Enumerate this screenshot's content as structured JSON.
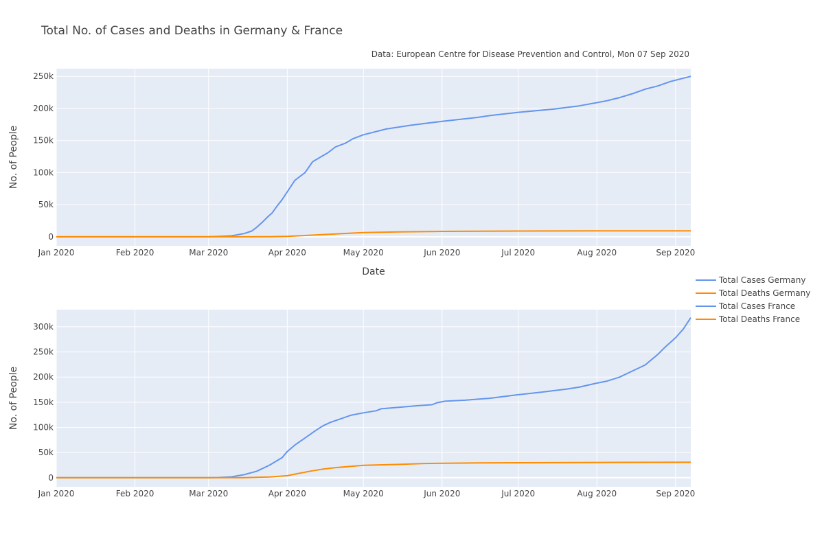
{
  "title": "Total No. of Cases and Deaths in Germany & France",
  "source_note": "Data: European Centre for Disease Prevention and Control, Mon 07 Sep 2020",
  "colors": {
    "cases": "#6495ED",
    "deaths": "#FF8C00",
    "plot_bg": "#E5ECF6",
    "grid": "#ffffff"
  },
  "legend": {
    "placement": "right",
    "items": [
      {
        "label": "Total Cases Germany",
        "color": "#6495ED"
      },
      {
        "label": "Total Deaths Germany",
        "color": "#FF8C00"
      },
      {
        "label": "Total Cases France",
        "color": "#6495ED"
      },
      {
        "label": "Total Deaths France",
        "color": "#FF8C00"
      }
    ]
  },
  "chart_data": [
    {
      "type": "line",
      "xlabel": "Date",
      "ylabel": "No. of People",
      "xlim": [
        "2020-01-01",
        "2020-09-07"
      ],
      "ylim": [
        -14000,
        262000
      ],
      "x_ticks": [
        {
          "date": "2020-01-01",
          "label": "Jan 2020"
        },
        {
          "date": "2020-02-01",
          "label": "Feb 2020"
        },
        {
          "date": "2020-03-01",
          "label": "Mar 2020"
        },
        {
          "date": "2020-04-01",
          "label": "Apr 2020"
        },
        {
          "date": "2020-05-01",
          "label": "May 2020"
        },
        {
          "date": "2020-06-01",
          "label": "Jun 2020"
        },
        {
          "date": "2020-07-01",
          "label": "Jul 2020"
        },
        {
          "date": "2020-08-01",
          "label": "Aug 2020"
        },
        {
          "date": "2020-09-01",
          "label": "Sep 2020"
        }
      ],
      "y_ticks": [
        {
          "value": 0,
          "label": "0"
        },
        {
          "value": 50000,
          "label": "50k"
        },
        {
          "value": 100000,
          "label": "100k"
        },
        {
          "value": 150000,
          "label": "150k"
        },
        {
          "value": 200000,
          "label": "200k"
        },
        {
          "value": 250000,
          "label": "250k"
        }
      ],
      "series": [
        {
          "name": "Total Cases Germany",
          "color": "#6495ED",
          "points": [
            [
              "2020-01-01",
              0
            ],
            [
              "2020-02-01",
              10
            ],
            [
              "2020-03-01",
              130
            ],
            [
              "2020-03-05",
              500
            ],
            [
              "2020-03-10",
              1500
            ],
            [
              "2020-03-15",
              5000
            ],
            [
              "2020-03-18",
              9000
            ],
            [
              "2020-03-19",
              12000
            ],
            [
              "2020-03-20",
              15000
            ],
            [
              "2020-03-22",
              22000
            ],
            [
              "2020-03-24",
              30000
            ],
            [
              "2020-03-26",
              37000
            ],
            [
              "2020-03-28",
              48000
            ],
            [
              "2020-03-30",
              58000
            ],
            [
              "2020-04-01",
              70000
            ],
            [
              "2020-04-04",
              88000
            ],
            [
              "2020-04-08",
              100000
            ],
            [
              "2020-04-11",
              117000
            ],
            [
              "2020-04-14",
              124000
            ],
            [
              "2020-04-17",
              131000
            ],
            [
              "2020-04-20",
              140000
            ],
            [
              "2020-04-24",
              146000
            ],
            [
              "2020-04-27",
              153000
            ],
            [
              "2020-05-01",
              159000
            ],
            [
              "2020-05-10",
              168000
            ],
            [
              "2020-05-20",
              174000
            ],
            [
              "2020-06-01",
              180000
            ],
            [
              "2020-06-15",
              186000
            ],
            [
              "2020-06-20",
              189000
            ],
            [
              "2020-07-01",
              194000
            ],
            [
              "2020-07-15",
              199000
            ],
            [
              "2020-07-25",
              204000
            ],
            [
              "2020-08-01",
              209000
            ],
            [
              "2020-08-05",
              212000
            ],
            [
              "2020-08-10",
              217000
            ],
            [
              "2020-08-15",
              223000
            ],
            [
              "2020-08-20",
              230000
            ],
            [
              "2020-08-25",
              235000
            ],
            [
              "2020-08-30",
              242000
            ],
            [
              "2020-09-07",
              250000
            ]
          ]
        },
        {
          "name": "Total Deaths Germany",
          "color": "#FF8C00",
          "points": [
            [
              "2020-01-01",
              0
            ],
            [
              "2020-03-15",
              20
            ],
            [
              "2020-03-25",
              200
            ],
            [
              "2020-04-01",
              800
            ],
            [
              "2020-04-10",
              2500
            ],
            [
              "2020-04-20",
              4500
            ],
            [
              "2020-05-01",
              6500
            ],
            [
              "2020-05-15",
              7700
            ],
            [
              "2020-06-01",
              8500
            ],
            [
              "2020-07-01",
              9000
            ],
            [
              "2020-08-01",
              9200
            ],
            [
              "2020-09-07",
              9300
            ]
          ]
        }
      ]
    },
    {
      "type": "line",
      "xlabel": "",
      "ylabel": "No. of People",
      "xlim": [
        "2020-01-01",
        "2020-09-07"
      ],
      "ylim": [
        -18000,
        334000
      ],
      "x_ticks": [
        {
          "date": "2020-01-01",
          "label": "Jan 2020"
        },
        {
          "date": "2020-02-01",
          "label": "Feb 2020"
        },
        {
          "date": "2020-03-01",
          "label": "Mar 2020"
        },
        {
          "date": "2020-04-01",
          "label": "Apr 2020"
        },
        {
          "date": "2020-05-01",
          "label": "May 2020"
        },
        {
          "date": "2020-06-01",
          "label": "Jun 2020"
        },
        {
          "date": "2020-07-01",
          "label": "Jul 2020"
        },
        {
          "date": "2020-08-01",
          "label": "Aug 2020"
        },
        {
          "date": "2020-09-01",
          "label": "Sep 2020"
        }
      ],
      "y_ticks": [
        {
          "value": 0,
          "label": "0"
        },
        {
          "value": 50000,
          "label": "50k"
        },
        {
          "value": 100000,
          "label": "100k"
        },
        {
          "value": 150000,
          "label": "150k"
        },
        {
          "value": 200000,
          "label": "200k"
        },
        {
          "value": 250000,
          "label": "250k"
        },
        {
          "value": 300000,
          "label": "300k"
        }
      ],
      "series": [
        {
          "name": "Total Cases France",
          "color": "#6495ED",
          "points": [
            [
              "2020-01-01",
              0
            ],
            [
              "2020-02-01",
              10
            ],
            [
              "2020-03-01",
              100
            ],
            [
              "2020-03-05",
              400
            ],
            [
              "2020-03-10",
              1800
            ],
            [
              "2020-03-15",
              6000
            ],
            [
              "2020-03-20",
              13000
            ],
            [
              "2020-03-25",
              25000
            ],
            [
              "2020-03-30",
              40000
            ],
            [
              "2020-04-01",
              52000
            ],
            [
              "2020-04-04",
              65000
            ],
            [
              "2020-04-08",
              79000
            ],
            [
              "2020-04-12",
              93000
            ],
            [
              "2020-04-15",
              103000
            ],
            [
              "2020-04-18",
              110000
            ],
            [
              "2020-04-22",
              117000
            ],
            [
              "2020-04-26",
              124000
            ],
            [
              "2020-05-01",
              129000
            ],
            [
              "2020-05-06",
              133000
            ],
            [
              "2020-05-08",
              137000
            ],
            [
              "2020-05-15",
              140000
            ],
            [
              "2020-05-22",
              143000
            ],
            [
              "2020-05-28",
              145000
            ],
            [
              "2020-05-30",
              149000
            ],
            [
              "2020-06-02",
              152000
            ],
            [
              "2020-06-10",
              154000
            ],
            [
              "2020-06-20",
              158000
            ],
            [
              "2020-07-01",
              165000
            ],
            [
              "2020-07-10",
              170000
            ],
            [
              "2020-07-20",
              176000
            ],
            [
              "2020-07-25",
              180000
            ],
            [
              "2020-08-01",
              188000
            ],
            [
              "2020-08-05",
              192000
            ],
            [
              "2020-08-10",
              200000
            ],
            [
              "2020-08-15",
              212000
            ],
            [
              "2020-08-20",
              224000
            ],
            [
              "2020-08-25",
              245000
            ],
            [
              "2020-08-28",
              260000
            ],
            [
              "2020-09-01",
              278000
            ],
            [
              "2020-09-04",
              295000
            ],
            [
              "2020-09-07",
              318000
            ]
          ]
        },
        {
          "name": "Total Deaths France",
          "color": "#FF8C00",
          "points": [
            [
              "2020-01-01",
              0
            ],
            [
              "2020-03-15",
              100
            ],
            [
              "2020-03-25",
              1500
            ],
            [
              "2020-04-01",
              4000
            ],
            [
              "2020-04-05",
              8000
            ],
            [
              "2020-04-10",
              13000
            ],
            [
              "2020-04-15",
              17000
            ],
            [
              "2020-04-20",
              20000
            ],
            [
              "2020-04-26",
              22500
            ],
            [
              "2020-05-01",
              24500
            ],
            [
              "2020-05-15",
              26500
            ],
            [
              "2020-05-25",
              28300
            ],
            [
              "2020-06-15",
              29500
            ],
            [
              "2020-07-01",
              29800
            ],
            [
              "2020-08-01",
              30300
            ],
            [
              "2020-09-07",
              30800
            ]
          ]
        }
      ]
    }
  ]
}
